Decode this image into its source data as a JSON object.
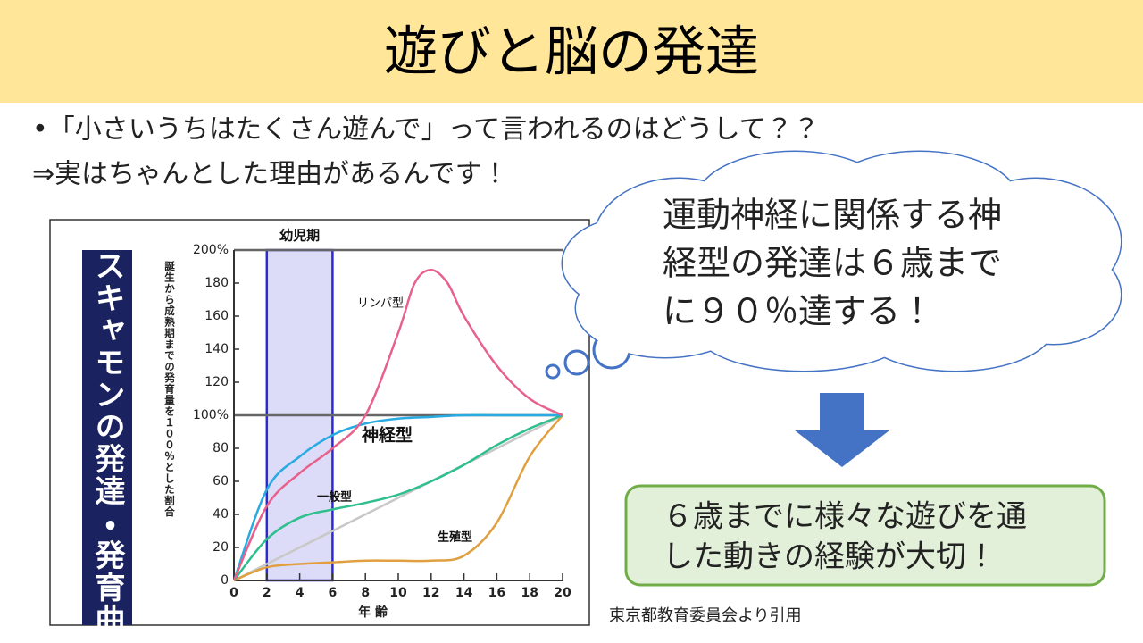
{
  "header": {
    "title": "遊びと脳の発達"
  },
  "bullets": [
    "•「小さいうちはたくさん遊んで」って言われるのはどうして？？",
    "⇒実はちゃんとした理由があるんです！"
  ],
  "cloud": {
    "lines": [
      "運動神経に関係する神",
      "経型の発達は６歳まで",
      "に９０％達する！"
    ]
  },
  "conclusion": {
    "lines": [
      "６歳までに様々な遊びを通",
      "した動きの経験が大切！"
    ]
  },
  "citation": "東京都教育委員会より引用",
  "chart_data": {
    "type": "line",
    "title": "スキャモンの発達・発育曲線",
    "y_label": "誕生から成熟期までの発育量を１００％とした割合",
    "x_label": "年 齢",
    "highlight": {
      "label": "幼児期",
      "x": [
        2,
        6
      ],
      "color": "#dcdcf8"
    },
    "xlim": [
      0,
      20
    ],
    "ylim": [
      0,
      200
    ],
    "xticks": [
      0,
      2,
      4,
      6,
      8,
      10,
      12,
      14,
      16,
      18,
      20
    ],
    "yticks": [
      0,
      20,
      40,
      60,
      80,
      {
        "value": 100,
        "label": "100%"
      },
      120,
      140,
      160,
      180,
      {
        "value": 200,
        "label": "200%"
      }
    ],
    "series": [
      {
        "name": "リンパ型",
        "color": "#e8618c",
        "x": [
          0,
          2,
          4,
          6,
          8,
          10,
          11,
          12,
          13,
          14,
          16,
          18,
          20
        ],
        "values": [
          0,
          45,
          65,
          80,
          100,
          150,
          180,
          188,
          180,
          160,
          130,
          110,
          100
        ]
      },
      {
        "name": "神経型",
        "color": "#29abe2",
        "x": [
          0,
          2,
          4,
          6,
          8,
          10,
          12,
          14,
          16,
          18,
          20
        ],
        "values": [
          0,
          55,
          75,
          88,
          95,
          98,
          99,
          100,
          100,
          100,
          100
        ]
      },
      {
        "name": "一般型",
        "color": "#2ebf8c",
        "x": [
          0,
          2,
          4,
          6,
          8,
          10,
          12,
          14,
          16,
          18,
          20
        ],
        "values": [
          0,
          25,
          38,
          43,
          47,
          52,
          60,
          70,
          82,
          92,
          100
        ]
      },
      {
        "name": "生殖型",
        "color": "#e0a040",
        "x": [
          0,
          2,
          4,
          6,
          8,
          10,
          12,
          14,
          16,
          18,
          20
        ],
        "values": [
          0,
          8,
          10,
          11,
          12,
          12,
          12,
          15,
          35,
          75,
          100
        ]
      },
      {
        "color": "#c8c8c8",
        "x": [
          0,
          20
        ],
        "values": [
          0,
          100
        ]
      }
    ]
  }
}
